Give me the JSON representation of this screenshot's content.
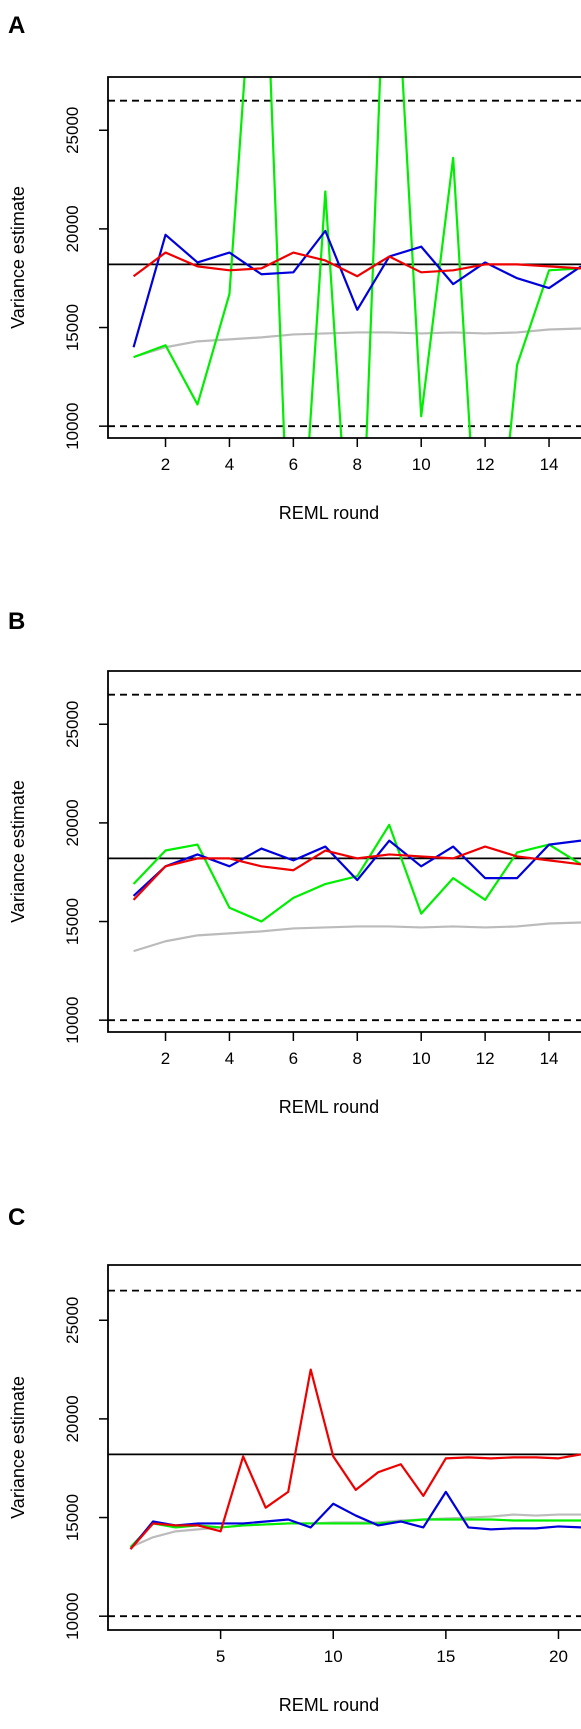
{
  "chart_data": [
    {
      "type": "line",
      "panel_label": "A",
      "xlabel": "REML round",
      "ylabel": "Variance estimate",
      "xlim": [
        0.2,
        15
      ],
      "ylim": [
        9400,
        27700
      ],
      "xticks": [
        2,
        4,
        6,
        8,
        10,
        12,
        14
      ],
      "yticks": [
        10000,
        15000,
        20000,
        25000
      ],
      "xtick_labels": [
        "2",
        "4",
        "6",
        "8",
        "10",
        "12",
        "14"
      ],
      "ytick_labels": [
        "10000",
        "15000",
        "20000",
        "25000"
      ],
      "reference_lines": [
        {
          "y": 18200,
          "style": "solid"
        },
        {
          "y": 26500,
          "style": "dashed"
        },
        {
          "y": 10000,
          "style": "dashed"
        }
      ],
      "x": [
        1,
        2,
        3,
        4,
        5,
        6,
        7,
        8,
        9,
        10,
        11,
        12,
        13,
        14,
        15
      ],
      "series": [
        {
          "color": "#bbbbbb",
          "values": [
            13500,
            14000,
            14300,
            14400,
            14500,
            14650,
            14700,
            14750,
            14750,
            14700,
            14750,
            14700,
            14750,
            14900,
            14950
          ]
        },
        {
          "color": "#00ee00",
          "values": [
            13500,
            14100,
            11100,
            16700,
            40000,
            -3000,
            21900,
            -3000,
            40000,
            10500,
            23600,
            -3000,
            13100,
            17900,
            18000
          ]
        },
        {
          "color": "#0000dd",
          "values": [
            14000,
            19700,
            18300,
            18800,
            17700,
            17800,
            19900,
            15900,
            18600,
            19100,
            17200,
            18300,
            17500,
            17000,
            18100
          ]
        },
        {
          "color": "#ee0000",
          "values": [
            17600,
            18800,
            18100,
            17900,
            18000,
            18800,
            18400,
            17600,
            18600,
            17800,
            17900,
            18200,
            18200,
            18100,
            18000
          ]
        }
      ]
    },
    {
      "type": "line",
      "panel_label": "B",
      "xlabel": "REML round",
      "ylabel": "Variance estimate",
      "xlim": [
        0.2,
        15
      ],
      "ylim": [
        9400,
        27700
      ],
      "xticks": [
        2,
        4,
        6,
        8,
        10,
        12,
        14
      ],
      "yticks": [
        10000,
        15000,
        20000,
        25000
      ],
      "xtick_labels": [
        "2",
        "4",
        "6",
        "8",
        "10",
        "12",
        "14"
      ],
      "ytick_labels": [
        "10000",
        "15000",
        "20000",
        "25000"
      ],
      "reference_lines": [
        {
          "y": 18200,
          "style": "solid"
        },
        {
          "y": 26500,
          "style": "dashed"
        },
        {
          "y": 10000,
          "style": "dashed"
        }
      ],
      "x": [
        1,
        2,
        3,
        4,
        5,
        6,
        7,
        8,
        9,
        10,
        11,
        12,
        13,
        14,
        15
      ],
      "series": [
        {
          "color": "#bbbbbb",
          "values": [
            13500,
            14000,
            14300,
            14400,
            14500,
            14650,
            14700,
            14750,
            14750,
            14700,
            14750,
            14700,
            14750,
            14900,
            14950
          ]
        },
        {
          "color": "#00ee00",
          "values": [
            16900,
            18600,
            18900,
            15700,
            15000,
            16200,
            16900,
            17300,
            19900,
            15400,
            17200,
            16100,
            18500,
            18900,
            17900
          ]
        },
        {
          "color": "#0000dd",
          "values": [
            16300,
            17800,
            18400,
            17800,
            18700,
            18100,
            18800,
            17100,
            19100,
            17800,
            18800,
            17200,
            17200,
            18900,
            19100
          ]
        },
        {
          "color": "#ee0000",
          "values": [
            16100,
            17800,
            18200,
            18200,
            17800,
            17600,
            18600,
            18200,
            18400,
            18300,
            18200,
            18800,
            18300,
            18100,
            17900
          ]
        }
      ]
    },
    {
      "type": "line",
      "panel_label": "C",
      "xlabel": "REML round",
      "ylabel": "Variance estimate",
      "xlim": [
        0,
        21
      ],
      "ylim": [
        9300,
        27800
      ],
      "xticks": [
        5,
        10,
        15,
        20
      ],
      "yticks": [
        10000,
        15000,
        20000,
        25000
      ],
      "xtick_labels": [
        "5",
        "10",
        "15",
        "20"
      ],
      "ytick_labels": [
        "10000",
        "15000",
        "20000",
        "25000"
      ],
      "reference_lines": [
        {
          "y": 18200,
          "style": "solid"
        },
        {
          "y": 26500,
          "style": "dashed"
        },
        {
          "y": 10000,
          "style": "dashed"
        }
      ],
      "x": [
        1,
        2,
        3,
        4,
        5,
        6,
        7,
        8,
        9,
        10,
        11,
        12,
        13,
        14,
        15,
        16,
        17,
        18,
        19,
        20,
        21
      ],
      "series": [
        {
          "color": "#bbbbbb",
          "values": [
            13500,
            14000,
            14300,
            14400,
            14500,
            14600,
            14650,
            14700,
            14700,
            14750,
            14750,
            14750,
            14850,
            14900,
            14950,
            15000,
            15050,
            15150,
            15100,
            15150,
            15150
          ]
        },
        {
          "color": "#00ee00",
          "values": [
            13500,
            14700,
            14500,
            14600,
            14500,
            14600,
            14650,
            14700,
            14700,
            14700,
            14700,
            14700,
            14800,
            14900,
            14900,
            14900,
            14900,
            14850,
            14850,
            14850,
            14850
          ]
        },
        {
          "color": "#0000dd",
          "values": [
            13400,
            14800,
            14600,
            14700,
            14700,
            14700,
            14800,
            14900,
            14500,
            15700,
            15100,
            14600,
            14800,
            14500,
            16300,
            14500,
            14400,
            14450,
            14450,
            14550,
            14500
          ]
        },
        {
          "color": "#ee0000",
          "values": [
            13400,
            14700,
            14600,
            14600,
            14300,
            18100,
            15500,
            16300,
            22500,
            18100,
            16400,
            17300,
            17700,
            16100,
            18000,
            18050,
            18000,
            18050,
            18050,
            18000,
            18200
          ]
        }
      ]
    }
  ]
}
